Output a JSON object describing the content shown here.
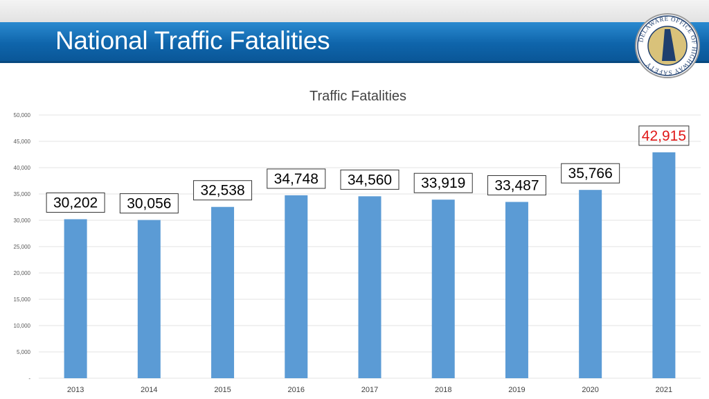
{
  "slide": {
    "title": "National Traffic Fatalities",
    "logo": {
      "ring_text": "DELAWARE OFFICE OF HIGHWAY SAFETY"
    }
  },
  "colors": {
    "title_bar": "#0f65ab",
    "bar": "#5b9bd5",
    "highlight_label": "#e01818",
    "grid": "#e3e3e3"
  },
  "chart_data": {
    "type": "bar",
    "title": "Traffic Fatalities",
    "xlabel": "",
    "ylabel": "",
    "categories": [
      "2013",
      "2014",
      "2015",
      "2016",
      "2017",
      "2018",
      "2019",
      "2020",
      "2021"
    ],
    "values": [
      30202,
      30056,
      32538,
      34748,
      34560,
      33919,
      33487,
      35766,
      42915
    ],
    "data_labels": [
      "30,202",
      "30,056",
      "32,538",
      "34,748",
      "34,560",
      "33,919",
      "33,487",
      "35,766",
      "42,915"
    ],
    "highlight_index": 8,
    "ylim": [
      0,
      50000
    ],
    "yticks": [
      0,
      5000,
      10000,
      15000,
      20000,
      25000,
      30000,
      35000,
      40000,
      45000,
      50000
    ],
    "ytick_labels": [
      "-",
      "5,000",
      "10,000",
      "15,000",
      "20,000",
      "25,000",
      "30,000",
      "35,000",
      "40,000",
      "45,000",
      "50,000"
    ],
    "grid": true,
    "legend": "none"
  }
}
